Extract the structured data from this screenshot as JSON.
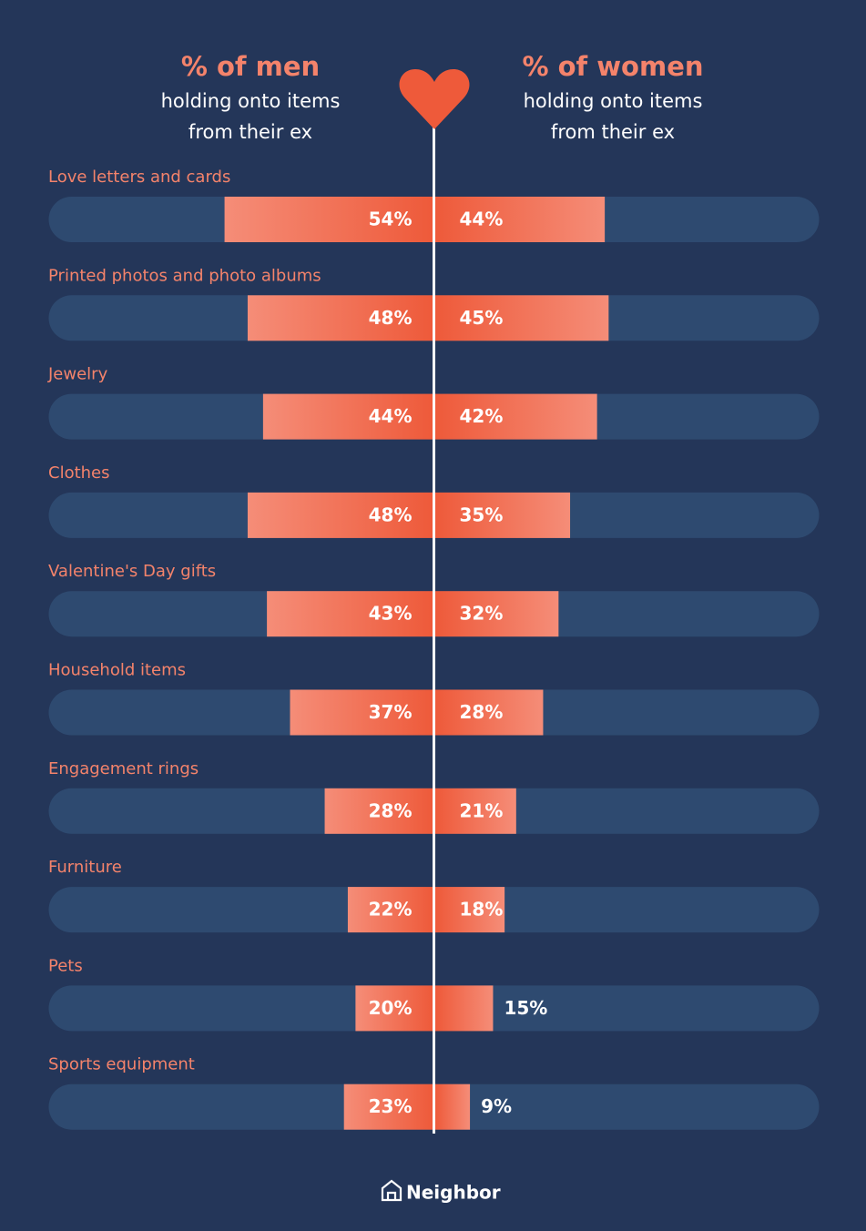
{
  "chart_data": {
    "type": "diverging-bar",
    "left_header": "% of men",
    "left_subheader": [
      "holding onto items",
      "from their ex"
    ],
    "right_header": "% of women",
    "right_subheader": [
      "holding onto items",
      "from their ex"
    ],
    "categories": [
      "Love letters and cards",
      "Printed photos and photo albums",
      "Jewelry",
      "Clothes",
      "Valentine's Day gifts",
      "Household items",
      "Engagement rings",
      "Furniture",
      "Pets",
      "Sports equipment"
    ],
    "xlim": [
      0,
      100
    ],
    "series": [
      {
        "name": "men",
        "color": "#ee5a3a",
        "side": "left",
        "values": [
          54,
          48,
          44,
          48,
          43,
          37,
          28,
          22,
          20,
          23
        ],
        "value_labels": [
          "54%",
          "48%",
          "44%",
          "48%",
          "43%",
          "37%",
          "28%",
          "22%",
          "20%",
          "23%"
        ]
      },
      {
        "name": "women",
        "color": "#ee5a3a",
        "side": "right",
        "values": [
          44,
          45,
          42,
          35,
          32,
          28,
          21,
          18,
          15,
          9
        ],
        "value_labels": [
          "44%",
          "45%",
          "42%",
          "35%",
          "32%",
          "28%",
          "21%",
          "18%",
          "15%",
          "9%"
        ]
      }
    ]
  },
  "footer": {
    "brand": "Neighbor"
  }
}
